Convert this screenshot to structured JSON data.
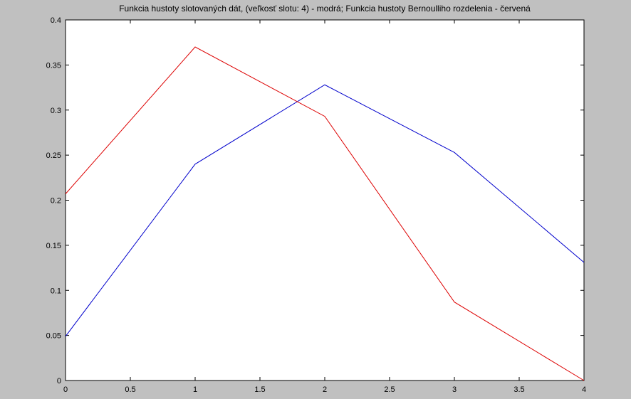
{
  "chart_data": {
    "type": "line",
    "title": "Funkcia hustoty slotovaných dát, (veľkosť slotu: 4) - modrá; Funkcia hustoty Bernoulliho rozdelenia - červená",
    "xlabel": "",
    "ylabel": "",
    "xlim": [
      0,
      4
    ],
    "ylim": [
      0,
      0.4
    ],
    "grid": false,
    "x_ticks": [
      "0",
      "0.5",
      "1",
      "1.5",
      "2",
      "2.5",
      "3",
      "3.5",
      "4"
    ],
    "y_ticks": [
      "0",
      "0.05",
      "0.1",
      "0.15",
      "0.2",
      "0.25",
      "0.3",
      "0.35",
      "0.4"
    ],
    "x": [
      0,
      1,
      2,
      3,
      4
    ],
    "series": [
      {
        "color": "#0000cc",
        "values": [
          0.049,
          0.24,
          0.328,
          0.253,
          0.131
        ]
      },
      {
        "color": "#dd0000",
        "values": [
          0.207,
          0.37,
          0.293,
          0.087,
          0.0
        ]
      }
    ]
  },
  "colors": {
    "figure_background": "#c0c0c0",
    "axes_background": "#ffffff",
    "axes_line": "#000000"
  }
}
